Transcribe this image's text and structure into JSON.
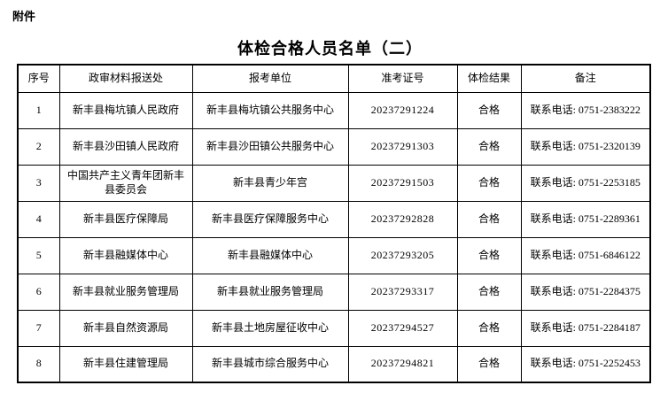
{
  "attachment_label": "附件",
  "title": "体检合格人员名单（二）",
  "colors": {
    "text": "#000000",
    "border": "#000000",
    "background": "#ffffff"
  },
  "table": {
    "headers": [
      "序号",
      "政审材料报送处",
      "报考单位",
      "准考证号",
      "体检结果",
      "备注"
    ],
    "rows": [
      [
        "1",
        "新丰县梅坑镇人民政府",
        "新丰县梅坑镇公共服务中心",
        "20237291224",
        "合格",
        "联系电话: 0751-2383222"
      ],
      [
        "2",
        "新丰县沙田镇人民政府",
        "新丰县沙田镇公共服务中心",
        "20237291303",
        "合格",
        "联系电话: 0751-2320139"
      ],
      [
        "3",
        "中国共产主义青年团新丰县委员会",
        "新丰县青少年宫",
        "20237291503",
        "合格",
        "联系电话: 0751-2253185"
      ],
      [
        "4",
        "新丰县医疗保障局",
        "新丰县医疗保障服务中心",
        "20237292828",
        "合格",
        "联系电话: 0751-2289361"
      ],
      [
        "5",
        "新丰县融媒体中心",
        "新丰县融媒体中心",
        "20237293205",
        "合格",
        "联系电话: 0751-6846122"
      ],
      [
        "6",
        "新丰县就业服务管理局",
        "新丰县就业服务管理局",
        "20237293317",
        "合格",
        "联系电话: 0751-2284375"
      ],
      [
        "7",
        "新丰县自然资源局",
        "新丰县土地房屋征收中心",
        "20237294527",
        "合格",
        "联系电话: 0751-2284187"
      ],
      [
        "8",
        "新丰县住建管理局",
        "新丰县城市综合服务中心",
        "20237294821",
        "合格",
        "联系电话: 0751-2252453"
      ]
    ]
  }
}
